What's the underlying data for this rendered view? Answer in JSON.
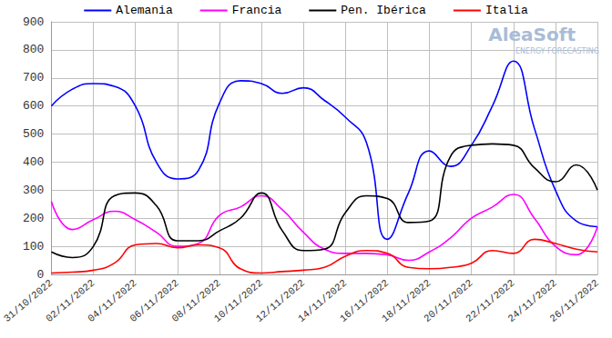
{
  "chart_data": {
    "type": "line",
    "categories": [
      "31/10/2022",
      null,
      "02/11/2022",
      null,
      "04/11/2022",
      null,
      "06/11/2022",
      null,
      "08/11/2022",
      null,
      "10/11/2022",
      null,
      "12/11/2022",
      null,
      "14/11/2022",
      null,
      "16/11/2022",
      null,
      "18/11/2022",
      null,
      "20/11/2022",
      null,
      "22/11/2022",
      null,
      "24/11/2022",
      null,
      "26/11/2022"
    ],
    "series": [
      {
        "name": "Alemania",
        "color": "#0000ff",
        "values": [
          600,
          660,
          680,
          670,
          600,
          400,
          340,
          370,
          610,
          690,
          680,
          645,
          665,
          620,
          560,
          470,
          125,
          290,
          440,
          385,
          460,
          600,
          760,
          520,
          300,
          190,
          170
        ]
      },
      {
        "name": "Francia",
        "color": "#ff00ff",
        "values": [
          260,
          160,
          195,
          225,
          195,
          150,
          100,
          110,
          210,
          240,
          280,
          230,
          150,
          90,
          75,
          75,
          70,
          50,
          80,
          130,
          200,
          240,
          285,
          200,
          100,
          70,
          170
        ]
      },
      {
        "name": "Pen. Ibérica",
        "color": "#000000",
        "values": [
          80,
          60,
          100,
          280,
          290,
          245,
          120,
          120,
          155,
          200,
          290,
          155,
          85,
          90,
          220,
          280,
          270,
          185,
          190,
          420,
          460,
          465,
          460,
          380,
          330,
          390,
          300
        ]
      },
      {
        "name": "Italia",
        "color": "#ff0000",
        "values": [
          5,
          8,
          15,
          40,
          105,
          110,
          95,
          105,
          95,
          20,
          5,
          10,
          15,
          25,
          65,
          85,
          75,
          25,
          20,
          25,
          40,
          85,
          75,
          125,
          110,
          90,
          80
        ]
      }
    ],
    "ylim": [
      0,
      900
    ],
    "yticks": [
      0,
      100,
      200,
      300,
      400,
      500,
      600,
      700,
      800,
      900
    ],
    "grid": true,
    "legend": "top",
    "annotations": [
      "AleaSoft",
      "ENERGY FORECASTING"
    ]
  }
}
